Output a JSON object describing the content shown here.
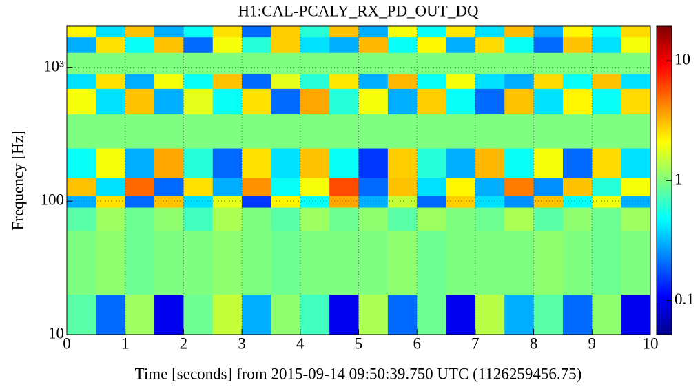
{
  "chart_data": {
    "type": "spectrogram",
    "title": "H1:CAL-PCALY_RX_PD_OUT_DQ",
    "xlabel": "Time [seconds] from 2015-09-14 09:50:39.750 UTC (1126259456.75)",
    "ylabel": "Frequency [Hz]",
    "colormap": "jet",
    "yscale": "log",
    "cscale": "log",
    "grid": true,
    "xlim": [
      0,
      10
    ],
    "xticks": [
      0,
      1,
      2,
      3,
      4,
      5,
      6,
      7,
      8,
      9,
      10
    ],
    "ylim": [
      10,
      2048
    ],
    "yticks": [
      10,
      100,
      {
        "value": 1000,
        "label": "10³"
      }
    ],
    "clim": [
      0.052,
      19.4
    ],
    "cticks": [
      0.1,
      1,
      10
    ],
    "x_edges": [
      0,
      0.5,
      1,
      1.5,
      2,
      2.5,
      3,
      3.5,
      4,
      4.5,
      5,
      5.5,
      6,
      6.5,
      7,
      7.5,
      8,
      8.5,
      9,
      9.5,
      10
    ],
    "y_edges": [
      10,
      20,
      60,
      90,
      110,
      150,
      250,
      450,
      700,
      900,
      1300,
      1700,
      2048
    ],
    "values": [
      [
        0.8,
        0.2,
        1.2,
        0.1,
        0.9,
        1.5,
        0.3,
        1.1,
        0.7,
        0.1,
        1.3,
        0.2,
        0.9,
        0.1,
        1.4,
        0.3,
        0.8,
        0.2,
        1.1,
        0.1
      ],
      [
        1,
        1.1,
        0.9,
        1,
        1,
        1.1,
        1,
        0.9,
        1,
        1,
        1,
        1.1,
        0.9,
        1,
        1,
        1,
        1.1,
        1,
        0.9,
        1
      ],
      [
        0.8,
        1.2,
        0.9,
        1.1,
        0.7,
        1.3,
        1,
        0.8,
        1.2,
        0.9,
        1.1,
        0.8,
        1.2,
        1,
        0.9,
        1.3,
        0.8,
        1.1,
        0.9,
        1.2
      ],
      [
        0.3,
        2.5,
        0.2,
        3,
        0.4,
        1.8,
        0.15,
        2.2,
        0.5,
        3.5,
        0.3,
        1.5,
        0.2,
        2.8,
        0.4,
        0.25,
        3,
        0.5,
        1.9,
        0.3
      ],
      [
        3,
        0.4,
        5,
        0.2,
        2.5,
        0.3,
        4,
        0.5,
        2,
        6,
        0.2,
        3,
        0.4,
        2.2,
        0.3,
        4.5,
        0.25,
        3,
        0.6,
        2
      ],
      [
        0.5,
        2,
        0.3,
        3.5,
        0.6,
        0.2,
        2.5,
        0.4,
        3,
        0.5,
        0.15,
        2.8,
        0.6,
        0.3,
        3.2,
        0.5,
        2,
        0.2,
        2.6,
        0.4
      ],
      [
        1,
        1,
        1,
        1,
        1,
        1,
        1,
        1,
        1,
        1,
        1,
        1,
        1,
        1,
        1,
        1,
        1,
        1,
        1,
        1
      ],
      [
        2,
        0.4,
        3,
        0.3,
        1.8,
        0.5,
        2.5,
        0.2,
        3.5,
        0.6,
        2,
        0.3,
        2.8,
        0.5,
        0.2,
        3,
        0.4,
        2.2,
        0.5,
        2.6
      ],
      [
        0.4,
        2.5,
        0.3,
        2,
        0.5,
        3,
        0.2,
        1.8,
        0.6,
        2.4,
        0.3,
        3.2,
        0.5,
        2,
        0.4,
        0.3,
        2.6,
        0.5,
        3,
        0.4
      ],
      [
        1,
        1,
        1,
        1,
        1,
        1,
        1,
        1,
        1,
        1,
        1,
        1,
        1,
        1,
        1,
        1,
        1,
        1,
        1,
        1
      ],
      [
        0.3,
        2.5,
        0.5,
        3,
        0.2,
        2,
        0.6,
        2.8,
        0.4,
        0.3,
        3.2,
        0.5,
        2.2,
        0.3,
        2.6,
        0.5,
        0.2,
        3,
        0.4,
        2
      ],
      [
        2.2,
        0.4,
        3,
        0.3,
        0.5,
        2.5,
        0.2,
        2.8,
        0.6,
        3,
        0.3,
        2,
        0.5,
        2.4,
        0.4,
        3.1,
        0.3,
        2.2,
        0.5,
        2.6
      ]
    ]
  }
}
